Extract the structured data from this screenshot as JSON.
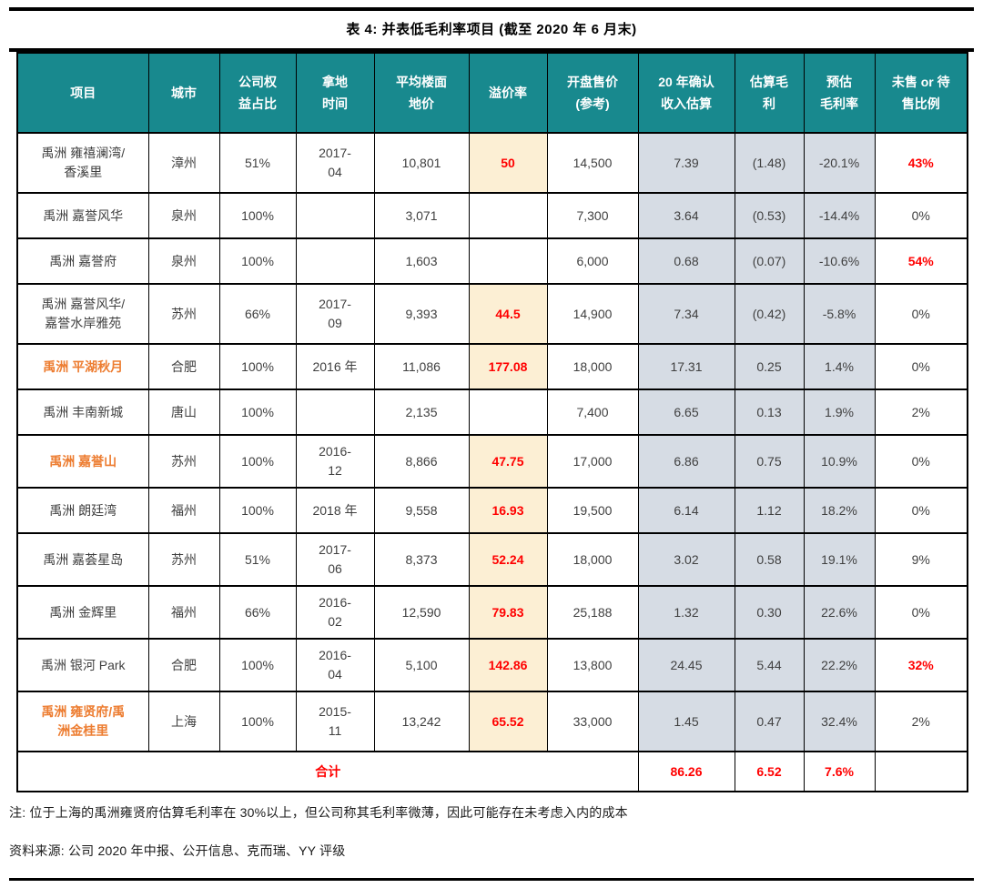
{
  "page": {
    "title": "表 4: 并表低毛利率项目 (截至 2020 年 6 月末)",
    "note": "注: 位于上海的禹洲雍贤府估算毛利率在 30%以上，但公司称其毛利率微薄，因此可能存在未考虑入内的成本",
    "source": "资料来源: 公司 2020 年中报、公开信息、克而瑞、YY 评级"
  },
  "colors": {
    "header_bg": "#18898E",
    "premium_cell_bg": "#FCEFD4",
    "shaded_column_bg": "#D6DCE4",
    "accent_orange": "#ED7D31",
    "accent_red": "#FF0000"
  },
  "chart_data": {
    "type": "table",
    "title": "表 4: 并表低毛利率项目 (截至 2020 年 6 月末)",
    "headers": [
      "项目",
      "城市",
      "公司权益占比",
      "拿地时间",
      "平均楼面地价",
      "溢价率",
      "开盘售价 (参考)",
      "20 年确认收入估算",
      "估算毛利",
      "预估毛利率",
      "未售 or 待售比例"
    ],
    "totals": [
      "合计",
      "",
      "",
      "",
      "",
      "",
      "",
      "86.26",
      "6.52",
      "7.6%",
      ""
    ]
  },
  "table": {
    "headers": [
      "项目",
      "城市",
      "公司权\n益占比",
      "拿地\n时间",
      "平均楼面\n地价",
      "溢价率",
      "开盘售价\n(参考)",
      "20 年确认\n收入估算",
      "估算毛\n利",
      "预估\n毛利率",
      "未售 or 待\n售比例"
    ],
    "rows": [
      {
        "project": "禹洲 雍禧澜湾/\n香溪里",
        "orange": false,
        "city": "漳州",
        "equity": "51%",
        "land_date": "2017-\n04",
        "avg_floor_price": "10,801",
        "premium_rate": "50",
        "open_price": "14,500",
        "revenue_2020": "7.39",
        "gross_profit": "(1.48)",
        "gross_margin": "-20.1%",
        "unsold": "43%",
        "unsold_red": true
      },
      {
        "project": "禹洲 嘉誉风华",
        "orange": false,
        "city": "泉州",
        "equity": "100%",
        "land_date": "",
        "avg_floor_price": "3,071",
        "premium_rate": "",
        "open_price": "7,300",
        "revenue_2020": "3.64",
        "gross_profit": "(0.53)",
        "gross_margin": "-14.4%",
        "unsold": "0%",
        "unsold_red": false
      },
      {
        "project": "禹洲 嘉誉府",
        "orange": false,
        "city": "泉州",
        "equity": "100%",
        "land_date": "",
        "avg_floor_price": "1,603",
        "premium_rate": "",
        "open_price": "6,000",
        "revenue_2020": "0.68",
        "gross_profit": "(0.07)",
        "gross_margin": "-10.6%",
        "unsold": "54%",
        "unsold_red": true
      },
      {
        "project": "禹洲 嘉誉风华/\n嘉誉水岸雅苑",
        "orange": false,
        "city": "苏州",
        "equity": "66%",
        "land_date": "2017-\n09",
        "avg_floor_price": "9,393",
        "premium_rate": "44.5",
        "open_price": "14,900",
        "revenue_2020": "7.34",
        "gross_profit": "(0.42)",
        "gross_margin": "-5.8%",
        "unsold": "0%",
        "unsold_red": false
      },
      {
        "project": "禹洲 平湖秋月",
        "orange": true,
        "city": "合肥",
        "equity": "100%",
        "land_date": "2016 年",
        "avg_floor_price": "11,086",
        "premium_rate": "177.08",
        "open_price": "18,000",
        "revenue_2020": "17.31",
        "gross_profit": "0.25",
        "gross_margin": "1.4%",
        "unsold": "0%",
        "unsold_red": false
      },
      {
        "project": "禹洲 丰南新城",
        "orange": false,
        "city": "唐山",
        "equity": "100%",
        "land_date": "",
        "avg_floor_price": "2,135",
        "premium_rate": "",
        "open_price": "7,400",
        "revenue_2020": "6.65",
        "gross_profit": "0.13",
        "gross_margin": "1.9%",
        "unsold": "2%",
        "unsold_red": false
      },
      {
        "project": "禹洲 嘉誉山",
        "orange": true,
        "city": "苏州",
        "equity": "100%",
        "land_date": "2016-\n12",
        "avg_floor_price": "8,866",
        "premium_rate": "47.75",
        "open_price": "17,000",
        "revenue_2020": "6.86",
        "gross_profit": "0.75",
        "gross_margin": "10.9%",
        "unsold": "0%",
        "unsold_red": false
      },
      {
        "project": "禹洲 朗廷湾",
        "orange": false,
        "city": "福州",
        "equity": "100%",
        "land_date": "2018 年",
        "avg_floor_price": "9,558",
        "premium_rate": "16.93",
        "open_price": "19,500",
        "revenue_2020": "6.14",
        "gross_profit": "1.12",
        "gross_margin": "18.2%",
        "unsold": "0%",
        "unsold_red": false
      },
      {
        "project": "禹洲 嘉荟星岛",
        "orange": false,
        "city": "苏州",
        "equity": "51%",
        "land_date": "2017-\n06",
        "avg_floor_price": "8,373",
        "premium_rate": "52.24",
        "open_price": "18,000",
        "revenue_2020": "3.02",
        "gross_profit": "0.58",
        "gross_margin": "19.1%",
        "unsold": "9%",
        "unsold_red": false
      },
      {
        "project": "禹洲 金辉里",
        "orange": false,
        "city": "福州",
        "equity": "66%",
        "land_date": "2016-\n02",
        "avg_floor_price": "12,590",
        "premium_rate": "79.83",
        "open_price": "25,188",
        "revenue_2020": "1.32",
        "gross_profit": "0.30",
        "gross_margin": "22.6%",
        "unsold": "0%",
        "unsold_red": false
      },
      {
        "project": "禹洲 银河 Park",
        "orange": false,
        "city": "合肥",
        "equity": "100%",
        "land_date": "2016-\n04",
        "avg_floor_price": "5,100",
        "premium_rate": "142.86",
        "open_price": "13,800",
        "revenue_2020": "24.45",
        "gross_profit": "5.44",
        "gross_margin": "22.2%",
        "unsold": "32%",
        "unsold_red": true
      },
      {
        "project": "禹洲 雍贤府/禹\n洲金桂里",
        "orange": true,
        "city": "上海",
        "equity": "100%",
        "land_date": "2015-\n11",
        "avg_floor_price": "13,242",
        "premium_rate": "65.52",
        "open_price": "33,000",
        "revenue_2020": "1.45",
        "gross_profit": "0.47",
        "gross_margin": "32.4%",
        "unsold": "2%",
        "unsold_red": false
      }
    ],
    "total": {
      "label": "合计",
      "revenue_2020": "86.26",
      "gross_profit": "6.52",
      "gross_margin": "7.6%",
      "unsold": ""
    }
  }
}
